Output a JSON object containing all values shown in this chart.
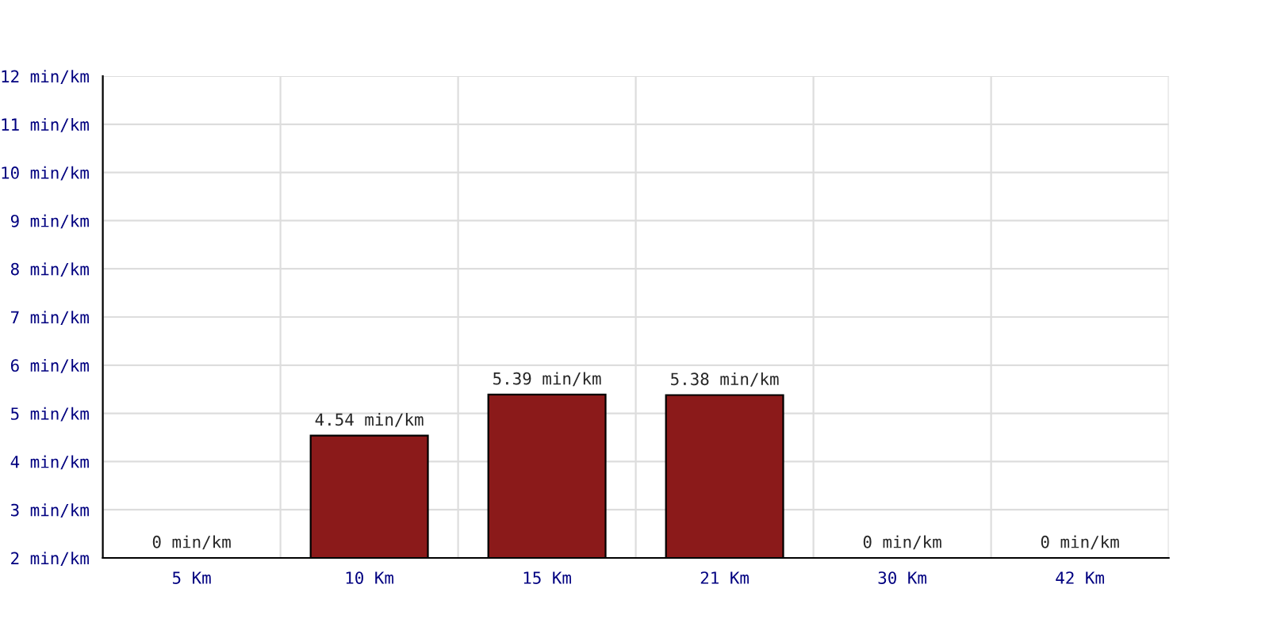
{
  "chart_data": {
    "type": "bar",
    "categories": [
      "5 Km",
      "10 Km",
      "15 Km",
      "21 Km",
      "30 Km",
      "42 Km"
    ],
    "values": [
      null,
      4.54,
      5.39,
      5.38,
      null,
      null
    ],
    "value_labels": [
      "0 min/km",
      "4.54 min/km",
      "5.39 min/km",
      "5.38 min/km",
      "0 min/km",
      "0 min/km"
    ],
    "color": "#8b1a1a",
    "ylim": [
      2,
      12
    ],
    "yticks": [
      {
        "value": 2,
        "label": "2 min/km"
      },
      {
        "value": 3,
        "label": "3 min/km"
      },
      {
        "value": 4,
        "label": "4 min/km"
      },
      {
        "value": 5,
        "label": "5 min/km"
      },
      {
        "value": 6,
        "label": "6 min/km"
      },
      {
        "value": 7,
        "label": "7 min/km"
      },
      {
        "value": 8,
        "label": "8 min/km"
      },
      {
        "value": 9,
        "label": "9 min/km"
      },
      {
        "value": 10,
        "label": "10 min/km"
      },
      {
        "value": 11,
        "label": "11 min/km"
      },
      {
        "value": 12,
        "label": "12 min/km"
      }
    ],
    "grid": true,
    "legend": false
  }
}
